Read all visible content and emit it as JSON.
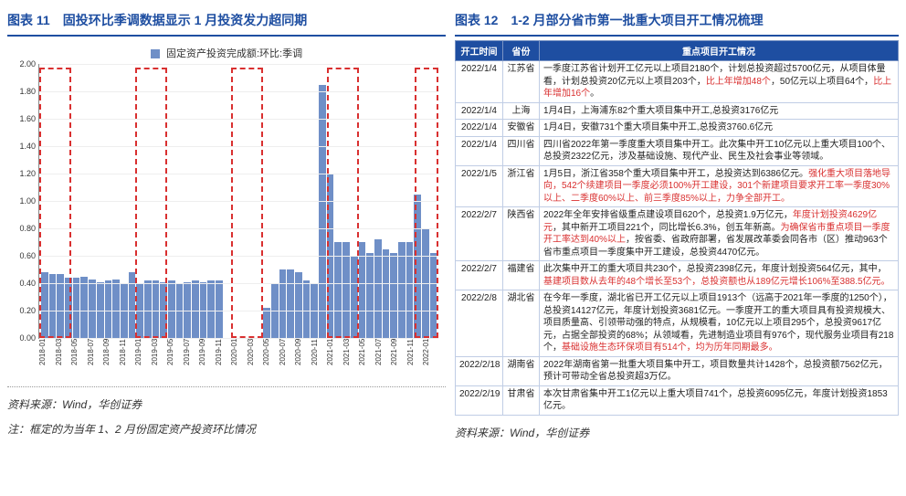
{
  "left": {
    "title": "图表 11　固投环比季调数据显示 1 月投资发力超同期",
    "legend": "固定资产投资完成额:环比:季调",
    "legend_color": "#6f8fc7",
    "chart": {
      "type": "bar",
      "ylim": [
        0,
        2.0
      ],
      "ytick_step": 0.2,
      "bar_color": "#6f8fc7",
      "background": "#ffffff",
      "grid_color": "#eeeeee",
      "highlight_border": "#d93030",
      "labels": [
        "2018-01",
        "2018-03",
        "2018-05",
        "2018-07",
        "2018-09",
        "2018-11",
        "2019-01",
        "2019-03",
        "2019-05",
        "2019-07",
        "2019-09",
        "2019-11",
        "2020-01",
        "2020-03",
        "2020-05",
        "2020-07",
        "2020-09",
        "2020-11",
        "2021-01",
        "2021-03",
        "2021-05",
        "2021-07",
        "2021-09",
        "2021-11",
        "2022-01"
      ],
      "x_show_every": 1,
      "values_per_label": 2,
      "values": [
        0.48,
        0.47,
        0.47,
        0.44,
        0.44,
        0.45,
        0.43,
        0.41,
        0.42,
        0.43,
        0.4,
        0.48,
        0.4,
        0.42,
        0.42,
        0.41,
        0.42,
        0.4,
        0.41,
        0.42,
        0.41,
        0.42,
        0.42,
        0.0,
        0.0,
        0.0,
        0.0,
        0.0,
        0.22,
        0.4,
        0.5,
        0.5,
        0.48,
        0.42,
        0.4,
        1.85,
        1.2,
        0.7,
        0.7,
        0.6,
        0.7,
        0.62,
        0.72,
        0.65,
        0.62,
        0.7,
        0.7,
        1.05,
        0.8,
        0.62
      ],
      "highlight_ranges": [
        [
          0,
          4
        ],
        [
          12,
          16
        ],
        [
          24,
          28
        ],
        [
          36,
          40
        ],
        [
          47,
          50
        ]
      ]
    },
    "source": "资料来源：Wind，华创证券",
    "note": "注：框定的为当年 1、2 月份固定资产投资环比情况"
  },
  "right": {
    "title": "图表 12　1-2 月部分省市第一批重大项目开工情况梳理",
    "columns": [
      "开工时间",
      "省份",
      "重点项目开工情况"
    ],
    "rows": [
      {
        "date": "2022/1/4",
        "prov": "江苏省",
        "desc": [
          {
            "t": "一季度江苏省计划开工亿元以上项目2180个，计划总投资超过5700亿元，从项目体量看，计划总投资20亿元以上项目203个，"
          },
          {
            "t": "比上年增加48个",
            "c": "hl-red"
          },
          {
            "t": "，50亿元以上项目64个，"
          },
          {
            "t": "比上年增加16个",
            "c": "hl-red"
          },
          {
            "t": "。"
          }
        ]
      },
      {
        "date": "2022/1/4",
        "prov": "上海",
        "desc": [
          {
            "t": "1月4日，上海浦东82个重大项目集中开工,总投资3176亿元"
          }
        ]
      },
      {
        "date": "2022/1/4",
        "prov": "安徽省",
        "desc": [
          {
            "t": "1月4日，安徽731个重大项目集中开工,总投资3760.6亿元"
          }
        ]
      },
      {
        "date": "2022/1/4",
        "prov": "四川省",
        "desc": [
          {
            "t": "四川省2022年第一季度重大项目集中开工。此次集中开工10亿元以上重大项目100个、总投资2322亿元，涉及基础设施、现代产业、民生及社会事业等领域。"
          }
        ]
      },
      {
        "date": "2022/1/5",
        "prov": "浙江省",
        "desc": [
          {
            "t": "1月5日，浙江省358个重大项目集中开工，总投资达到6386亿元。"
          },
          {
            "t": "强化重大项目落地导向，542个续建项目一季度必须100%开工建设，301个新建项目要求开工率一季度30%以上、二季度60%以上、前三季度85%以上，力争全部开工。",
            "c": "hl-red"
          }
        ]
      },
      {
        "date": "2022/2/7",
        "prov": "陕西省",
        "desc": [
          {
            "t": "2022年全年安排省级重点建设项目620个，总投资1.9万亿元，"
          },
          {
            "t": "年度计划投资4629亿元",
            "c": "hl-red"
          },
          {
            "t": "，其中新开工项目221个，同比增长6.3%，创五年新高。"
          },
          {
            "t": "为确保省市重点项目一季度开工率达到40%以上",
            "c": "hl-red"
          },
          {
            "t": "，按省委、省政府部署，省发展改革委会同各市（区）推动963个省市重点项目一季度集中开工建设，总投资4470亿元。"
          }
        ]
      },
      {
        "date": "2022/2/7",
        "prov": "福建省",
        "desc": [
          {
            "t": "此次集中开工的重大项目共230个，总投资2398亿元，年度计划投资564亿元，其中，"
          },
          {
            "t": "基建项目数从去年的48个增长至53个，总投资额也从189亿元增长106%至388.5亿元。",
            "c": "hl-red"
          }
        ]
      },
      {
        "date": "2022/2/8",
        "prov": "湖北省",
        "desc": [
          {
            "t": "在今年一季度，湖北省已开工亿元以上项目1913个（远高于2021年一季度的1250个），总投资14127亿元，年度计划投资3681亿元。一季度开工的重大项目具有投资规模大、项目质量高、引领带动强的特点，从规模看，10亿元以上项目295个，总投资9617亿元，占据全部投资的68%；从领域看，先进制造业项目有976个，现代服务业项目有218个，"
          },
          {
            "t": "基础设施生态环保项目有514个，均为历年同期最多。",
            "c": "hl-red"
          }
        ]
      },
      {
        "date": "2022/2/18",
        "prov": "湖南省",
        "desc": [
          {
            "t": "2022年湖南省第一批重大项目集中开工，项目数量共计1428个，总投资额7562亿元，预计可带动全省总投资超3万亿。"
          }
        ]
      },
      {
        "date": "2022/2/19",
        "prov": "甘肃省",
        "desc": [
          {
            "t": "本次甘肃省集中开工1亿元以上重大项目741个，总投资6095亿元，年度计划投资1853亿元。"
          }
        ]
      }
    ],
    "header_bg": "#1e4ea1",
    "header_fg": "#ffffff",
    "source": "资料来源：Wind，华创证券"
  }
}
